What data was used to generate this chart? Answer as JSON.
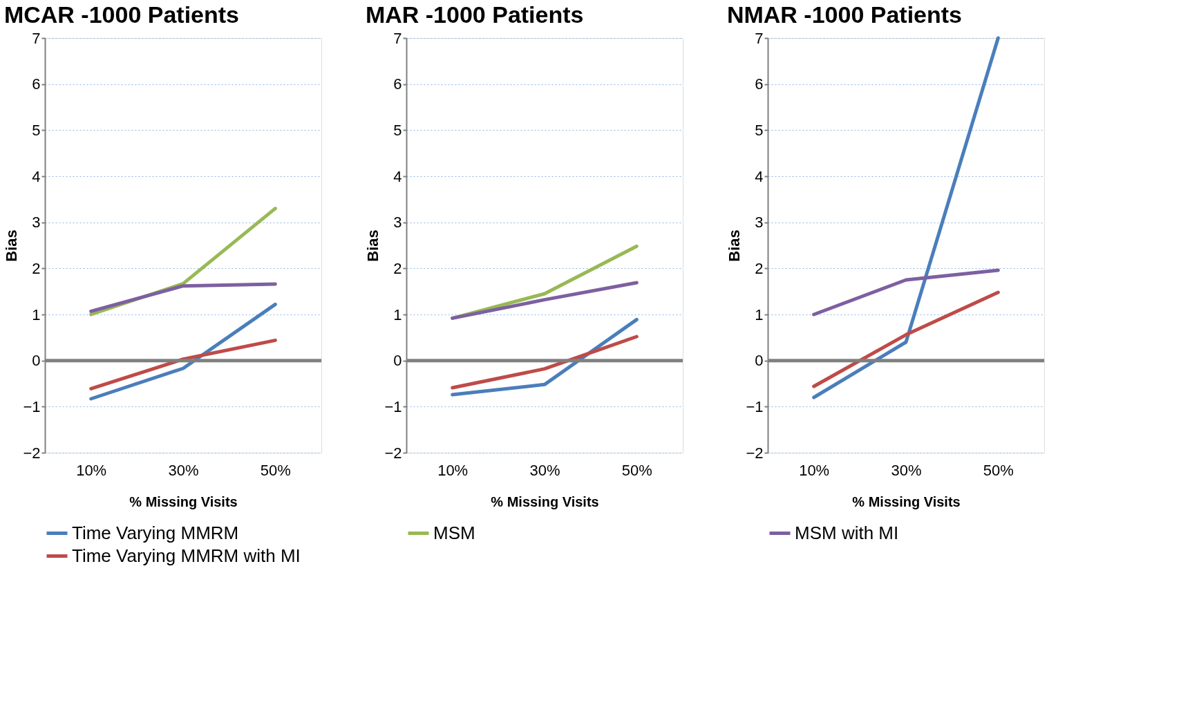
{
  "chart_data": [
    {
      "type": "line",
      "title": "MCAR -1000 Patients",
      "xlabel": "% Missing Visits",
      "ylabel": "Bias",
      "categories": [
        "10%",
        "30%",
        "50%"
      ],
      "ylim": [
        -2,
        7
      ],
      "yticks": [
        -2,
        -1,
        0,
        1,
        2,
        3,
        4,
        5,
        6,
        7
      ],
      "grid": "y",
      "legend": "bottom",
      "marker": "none",
      "line_style": "solid",
      "ref_lines": [
        {
          "axis": "y",
          "value": 0,
          "color": "#808080"
        }
      ],
      "series": [
        {
          "name": "Time Varying MMRM",
          "color": "#4a7ebb",
          "values": [
            -0.83,
            -0.17,
            1.22
          ]
        },
        {
          "name": "Time Varying MMRM with MI",
          "color": "#be4b48",
          "values": [
            -0.61,
            0.03,
            0.44
          ]
        },
        {
          "color": "#98b954",
          "values": [
            1.0,
            1.67,
            3.3
          ]
        },
        {
          "color": "#7d60a0",
          "values": [
            1.07,
            1.62,
            1.66
          ]
        }
      ]
    },
    {
      "type": "line",
      "title": "MAR -1000 Patients",
      "xlabel": "% Missing Visits",
      "ylabel": "Bias",
      "categories": [
        "10%",
        "30%",
        "50%"
      ],
      "ylim": [
        -2,
        7
      ],
      "yticks": [
        -2,
        -1,
        0,
        1,
        2,
        3,
        4,
        5,
        6,
        7
      ],
      "grid": "y",
      "legend": "bottom",
      "marker": "none",
      "line_style": "solid",
      "ref_lines": [
        {
          "axis": "y",
          "value": 0,
          "color": "#808080"
        }
      ],
      "series": [
        {
          "color": "#4a7ebb",
          "values": [
            -0.74,
            -0.52,
            0.89
          ]
        },
        {
          "color": "#be4b48",
          "values": [
            -0.59,
            -0.18,
            0.52
          ]
        },
        {
          "name": "MSM",
          "color": "#98b954",
          "values": [
            0.92,
            1.45,
            2.48
          ]
        },
        {
          "color": "#7d60a0",
          "values": [
            0.92,
            1.32,
            1.69
          ]
        }
      ]
    },
    {
      "type": "line",
      "title": "NMAR -1000 Patients",
      "xlabel": "% Missing Visits",
      "ylabel": "Bias",
      "categories": [
        "10%",
        "30%",
        "50%"
      ],
      "ylim": [
        -2,
        7
      ],
      "yticks": [
        -2,
        -1,
        0,
        1,
        2,
        3,
        4,
        5,
        6,
        7
      ],
      "grid": "y",
      "legend": "bottom",
      "marker": "none",
      "line_style": "solid",
      "ref_lines": [
        {
          "axis": "y",
          "value": 0,
          "color": "#808080"
        }
      ],
      "series": [
        {
          "color": "#4a7ebb",
          "values": [
            -0.8,
            0.4,
            7
          ]
        },
        {
          "color": "#be4b48",
          "values": [
            -0.56,
            0.56,
            1.48
          ]
        },
        {
          "name": "MSM with MI",
          "color": "#7d60a0",
          "values": [
            1.0,
            1.75,
            1.96
          ]
        }
      ]
    }
  ]
}
